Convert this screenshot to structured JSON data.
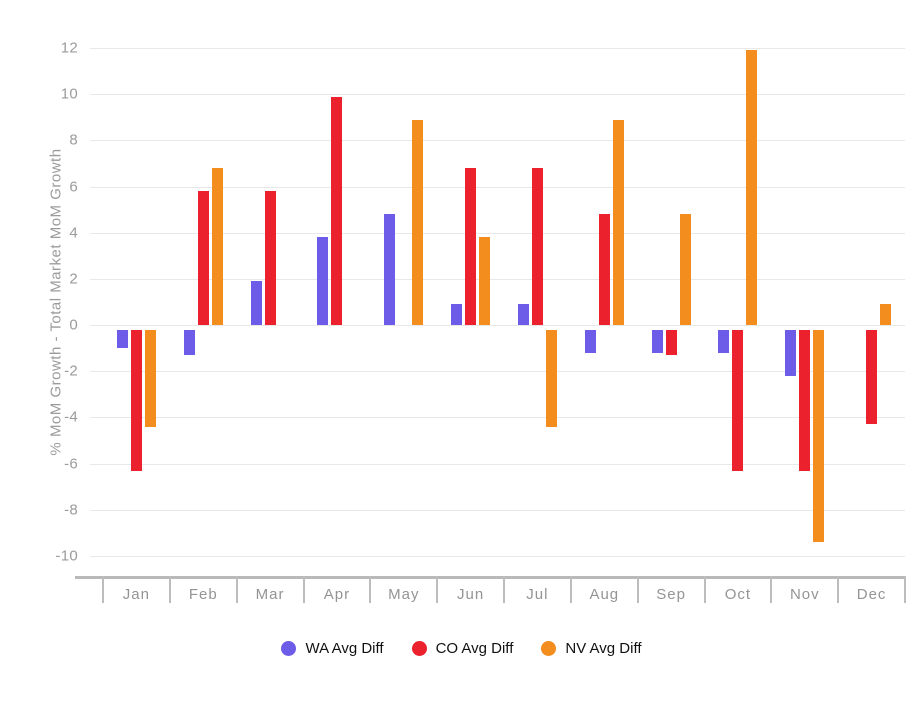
{
  "chart_data": {
    "type": "bar",
    "title": "",
    "xlabel": "",
    "ylabel": "% MoM Growth - Total Market MoM Growth",
    "categories": [
      "Jan",
      "Feb",
      "Mar",
      "Apr",
      "May",
      "Jun",
      "Jul",
      "Aug",
      "Sep",
      "Oct",
      "Nov",
      "Dec"
    ],
    "ylim": [
      -10,
      12
    ],
    "ytick_step": 2,
    "grid": true,
    "legend_position": "bottom",
    "series": [
      {
        "name": "WA Avg Diff",
        "color": "#6C5CE7",
        "values": [
          -1.0,
          -1.3,
          1.9,
          3.8,
          4.8,
          0.9,
          0.9,
          -1.2,
          -1.2,
          -1.2,
          -2.2,
          0
        ]
      },
      {
        "name": "CO Avg Diff",
        "color": "#EB212E",
        "values": [
          -6.3,
          5.8,
          5.8,
          9.9,
          0,
          6.8,
          6.8,
          4.8,
          -1.3,
          -6.3,
          -6.3,
          -4.3
        ]
      },
      {
        "name": "NV Avg Diff",
        "color": "#F28D1E",
        "values": [
          -4.4,
          6.8,
          0,
          0,
          8.9,
          3.8,
          -4.4,
          8.9,
          4.8,
          11.9,
          -9.4,
          0.9
        ]
      }
    ]
  }
}
